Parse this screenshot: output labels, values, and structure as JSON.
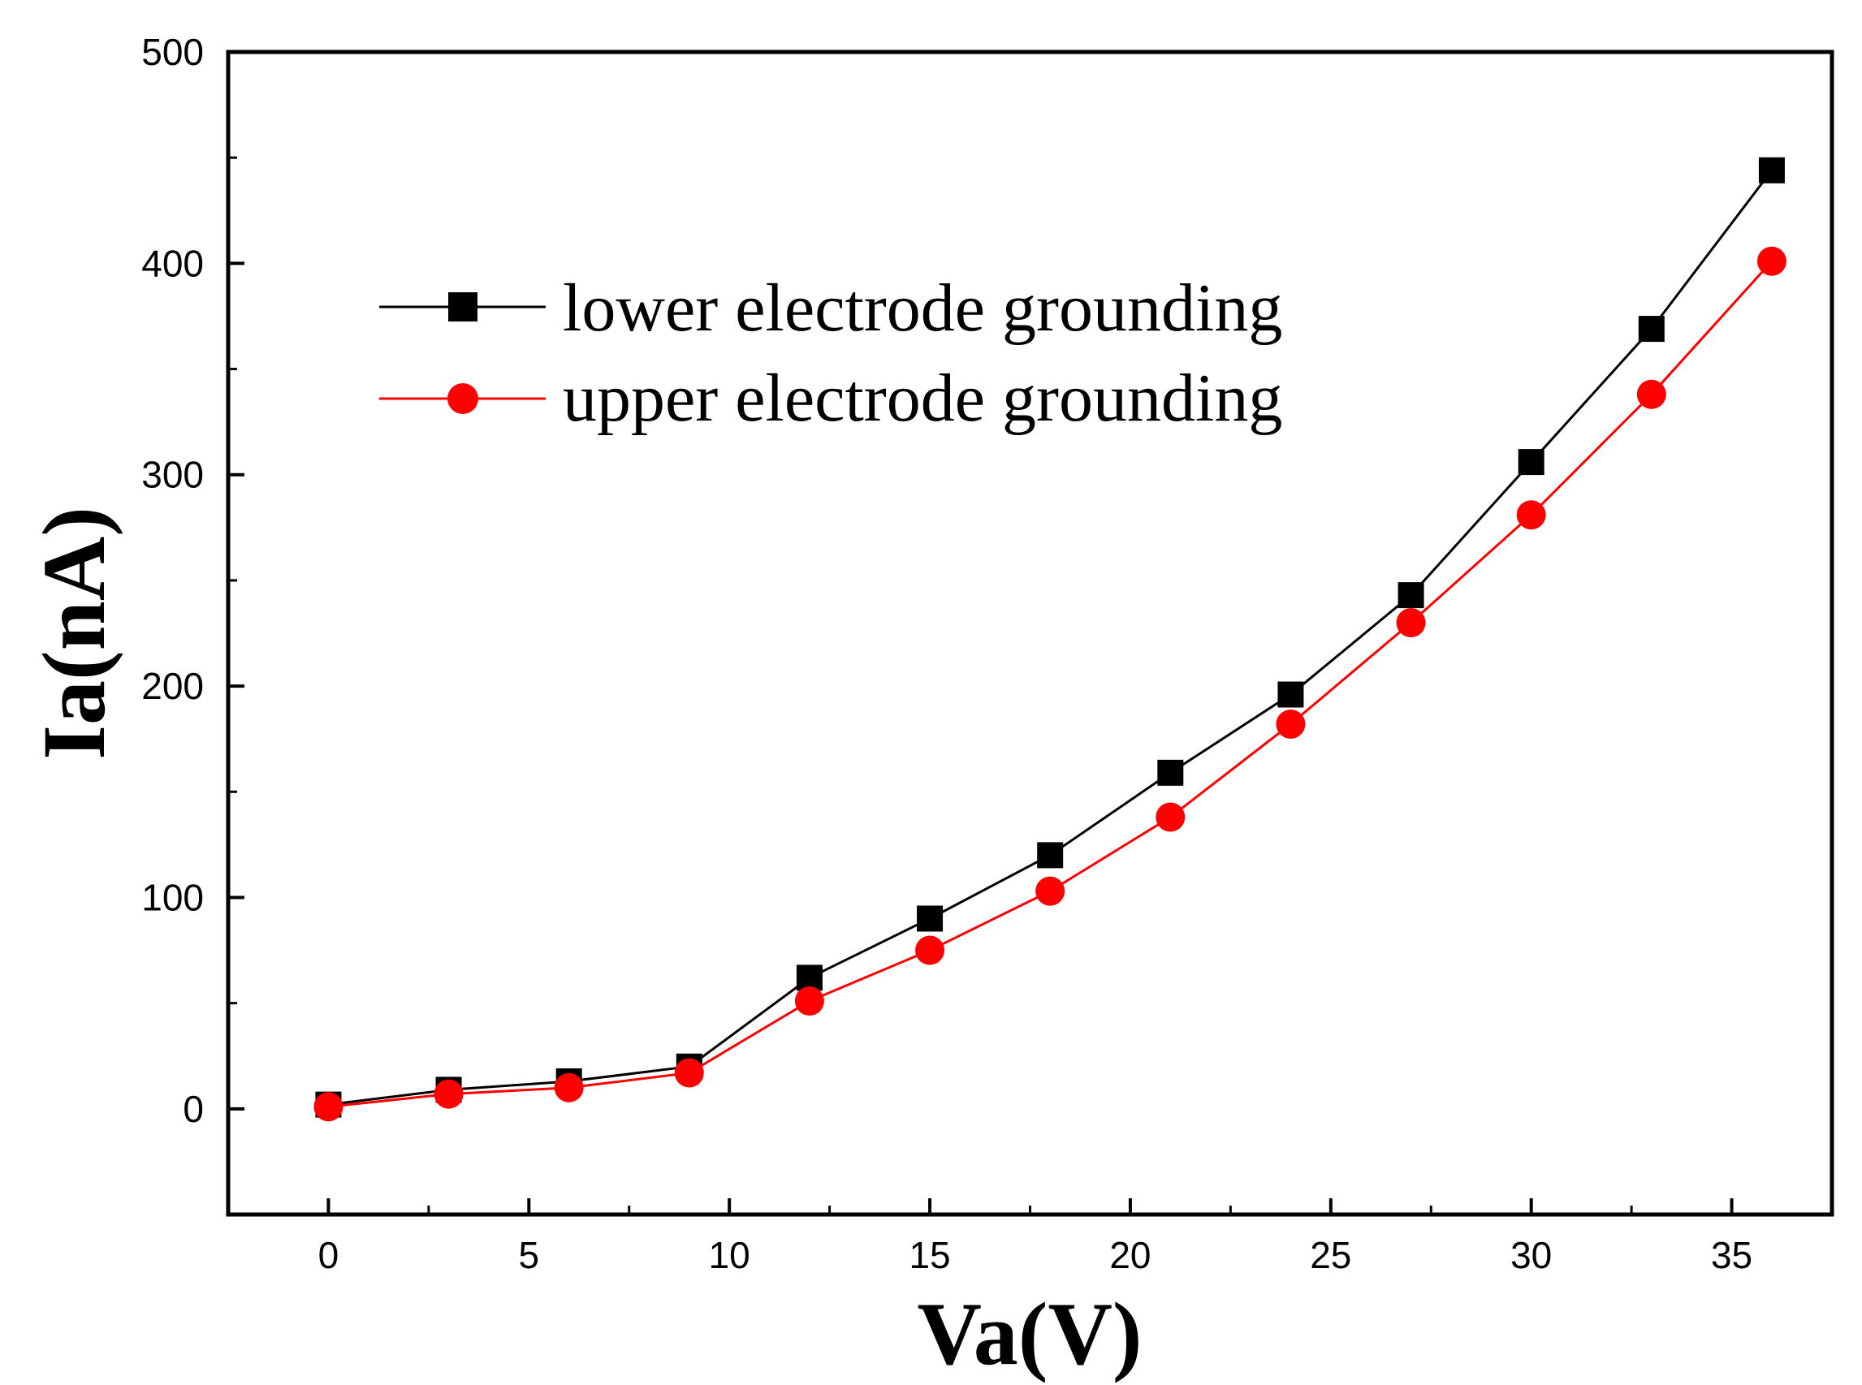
{
  "chart_data": {
    "type": "line",
    "title": "",
    "xlabel": "Va(V)",
    "ylabel": "Ia(nA)",
    "xlim": [
      -2.5,
      37.5
    ],
    "ylim": [
      -50,
      500
    ],
    "xticks": [
      0,
      5,
      10,
      15,
      20,
      25,
      30,
      35
    ],
    "xticks_minor": [
      2.5,
      7.5,
      12.5,
      17.5,
      22.5,
      27.5,
      32.5
    ],
    "yticks": [
      0,
      100,
      200,
      300,
      400,
      500
    ],
    "yticks_minor": [
      50,
      150,
      250,
      350,
      450
    ],
    "grid": false,
    "legend_position": "upper-left",
    "x": [
      0,
      3,
      6,
      9,
      12,
      15,
      18,
      21,
      24,
      27,
      30,
      33,
      36
    ],
    "series": [
      {
        "name": "lower electrode grounding",
        "color": "#000000",
        "marker": "square",
        "values": [
          2,
          9,
          13,
          20,
          62,
          90,
          120,
          159,
          196,
          243,
          306,
          369,
          444
        ]
      },
      {
        "name": "upper electrode grounding",
        "color": "#ff0000",
        "marker": "circle",
        "values": [
          1,
          7,
          10,
          17,
          51,
          75,
          103,
          138,
          182,
          230,
          281,
          338,
          401
        ]
      }
    ]
  }
}
